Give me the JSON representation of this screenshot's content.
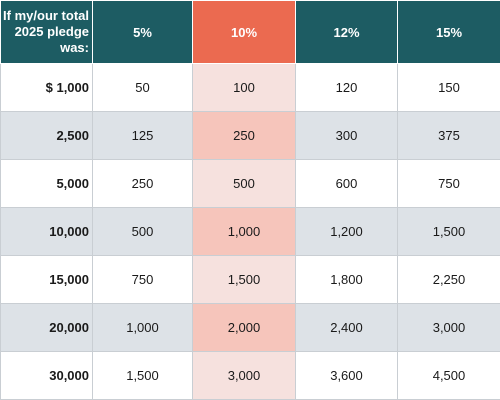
{
  "table": {
    "corner_label": "If my/our total 2025 pledge was:",
    "headers": [
      "5%",
      "10%",
      "12%",
      "15%"
    ],
    "highlight_color": "#eb6a50",
    "header_color": "#1d5c63",
    "rows": [
      {
        "amount": "$ 1,000",
        "values": [
          "50",
          "100",
          "120",
          "150"
        ]
      },
      {
        "amount": "2,500",
        "values": [
          "125",
          "250",
          "300",
          "375"
        ]
      },
      {
        "amount": "5,000",
        "values": [
          "250",
          "500",
          "600",
          "750"
        ]
      },
      {
        "amount": "10,000",
        "values": [
          "500",
          "1,000",
          "1,200",
          "1,500"
        ]
      },
      {
        "amount": "15,000",
        "values": [
          "750",
          "1,500",
          "1,800",
          "2,250"
        ]
      },
      {
        "amount": "20,000",
        "values": [
          "1,000",
          "2,000",
          "2,400",
          "3,000"
        ]
      },
      {
        "amount": "30,000",
        "values": [
          "1,500",
          "3,000",
          "3,600",
          "4,500"
        ]
      }
    ]
  }
}
